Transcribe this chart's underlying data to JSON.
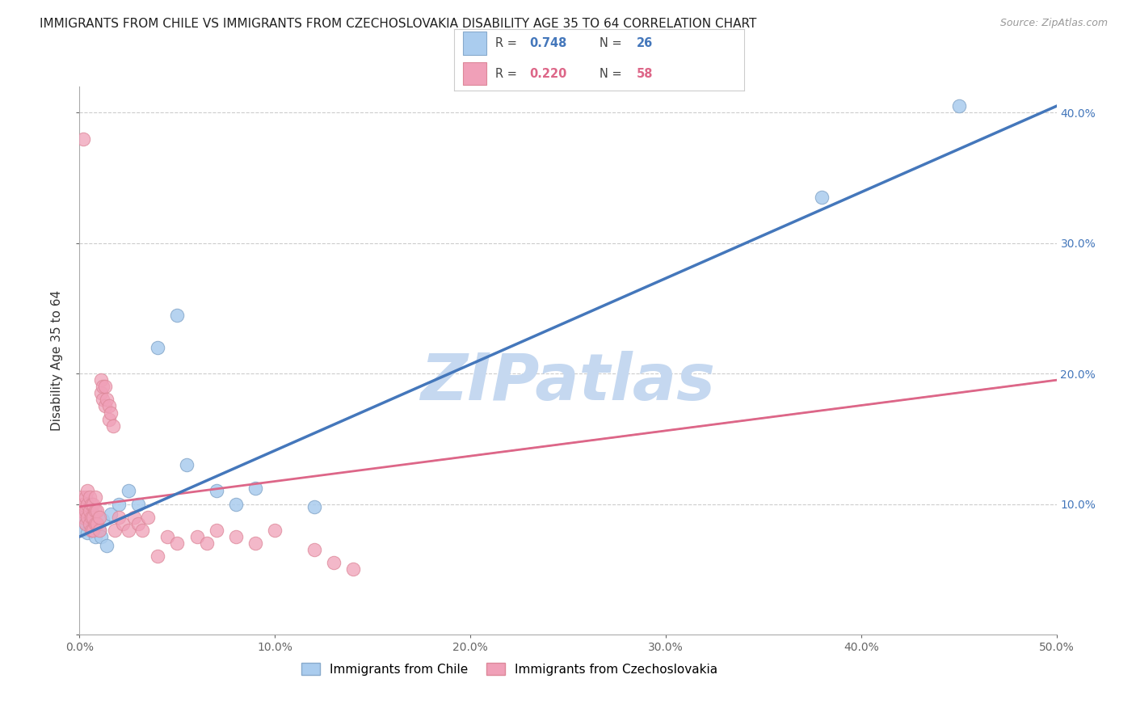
{
  "title": "IMMIGRANTS FROM CHILE VS IMMIGRANTS FROM CZECHOSLOVAKIA DISABILITY AGE 35 TO 64 CORRELATION CHART",
  "source": "Source: ZipAtlas.com",
  "ylabel": "Disability Age 35 to 64",
  "xlim": [
    0.0,
    0.5
  ],
  "ylim": [
    0.0,
    0.42
  ],
  "yticks": [
    0.0,
    0.1,
    0.2,
    0.3,
    0.4
  ],
  "xticks": [
    0.0,
    0.1,
    0.2,
    0.3,
    0.4,
    0.5
  ],
  "xtick_labels": [
    "0.0%",
    "10.0%",
    "20.0%",
    "30.0%",
    "40.0%",
    "50.0%"
  ],
  "background_color": "#ffffff",
  "grid_color": "#cccccc",
  "watermark_text": "ZIPatlas",
  "watermark_color": "#c5d8f0",
  "chile_scatter_color": "#aaccee",
  "chile_scatter_edge": "#88aacc",
  "czech_scatter_color": "#f0a0b8",
  "czech_scatter_edge": "#dd8899",
  "chile_line_color": "#4477bb",
  "czech_line_color": "#dd6688",
  "dashed_line_color": "#ccbbbb",
  "chile_x": [
    0.001,
    0.002,
    0.003,
    0.004,
    0.005,
    0.006,
    0.007,
    0.008,
    0.009,
    0.01,
    0.011,
    0.012,
    0.014,
    0.016,
    0.02,
    0.025,
    0.03,
    0.04,
    0.05,
    0.055,
    0.07,
    0.08,
    0.09,
    0.12,
    0.38,
    0.45
  ],
  "chile_y": [
    0.08,
    0.09,
    0.085,
    0.078,
    0.088,
    0.082,
    0.092,
    0.075,
    0.085,
    0.08,
    0.075,
    0.088,
    0.068,
    0.092,
    0.1,
    0.11,
    0.1,
    0.22,
    0.245,
    0.13,
    0.11,
    0.1,
    0.112,
    0.098,
    0.335,
    0.405
  ],
  "czech_x": [
    0.001,
    0.001,
    0.002,
    0.002,
    0.003,
    0.003,
    0.003,
    0.004,
    0.004,
    0.004,
    0.005,
    0.005,
    0.005,
    0.006,
    0.006,
    0.006,
    0.007,
    0.007,
    0.007,
    0.008,
    0.008,
    0.008,
    0.009,
    0.009,
    0.01,
    0.01,
    0.011,
    0.011,
    0.012,
    0.012,
    0.013,
    0.013,
    0.014,
    0.015,
    0.015,
    0.016,
    0.017,
    0.018,
    0.02,
    0.022,
    0.025,
    0.028,
    0.03,
    0.032,
    0.035,
    0.04,
    0.045,
    0.05,
    0.06,
    0.065,
    0.07,
    0.08,
    0.09,
    0.1,
    0.12,
    0.002,
    0.13,
    0.14
  ],
  "czech_y": [
    0.095,
    0.105,
    0.09,
    0.1,
    0.085,
    0.095,
    0.105,
    0.09,
    0.1,
    0.11,
    0.085,
    0.095,
    0.105,
    0.08,
    0.09,
    0.1,
    0.08,
    0.09,
    0.1,
    0.085,
    0.095,
    0.105,
    0.085,
    0.095,
    0.08,
    0.09,
    0.185,
    0.195,
    0.18,
    0.19,
    0.175,
    0.19,
    0.18,
    0.165,
    0.175,
    0.17,
    0.16,
    0.08,
    0.09,
    0.085,
    0.08,
    0.09,
    0.085,
    0.08,
    0.09,
    0.06,
    0.075,
    0.07,
    0.075,
    0.07,
    0.08,
    0.075,
    0.07,
    0.08,
    0.065,
    0.38,
    0.055,
    0.05
  ],
  "legend_box": {
    "chile_patch_color": "#aaccee",
    "chile_patch_edge": "#88aacc",
    "czech_patch_color": "#f0a0b8",
    "czech_patch_edge": "#dd8899",
    "chile_R": "0.748",
    "chile_N": "26",
    "czech_R": "0.220",
    "czech_N": "58",
    "R_color": "#4477bb",
    "N_color": "#4477bb",
    "R_color2": "#dd6688",
    "N_color2": "#dd6688"
  },
  "bottom_legend": {
    "chile_label": "Immigrants from Chile",
    "czech_label": "Immigrants from Czechoslovakia",
    "chile_color": "#aaccee",
    "chile_edge": "#88aacc",
    "czech_color": "#f0a0b8",
    "czech_edge": "#dd8899"
  }
}
